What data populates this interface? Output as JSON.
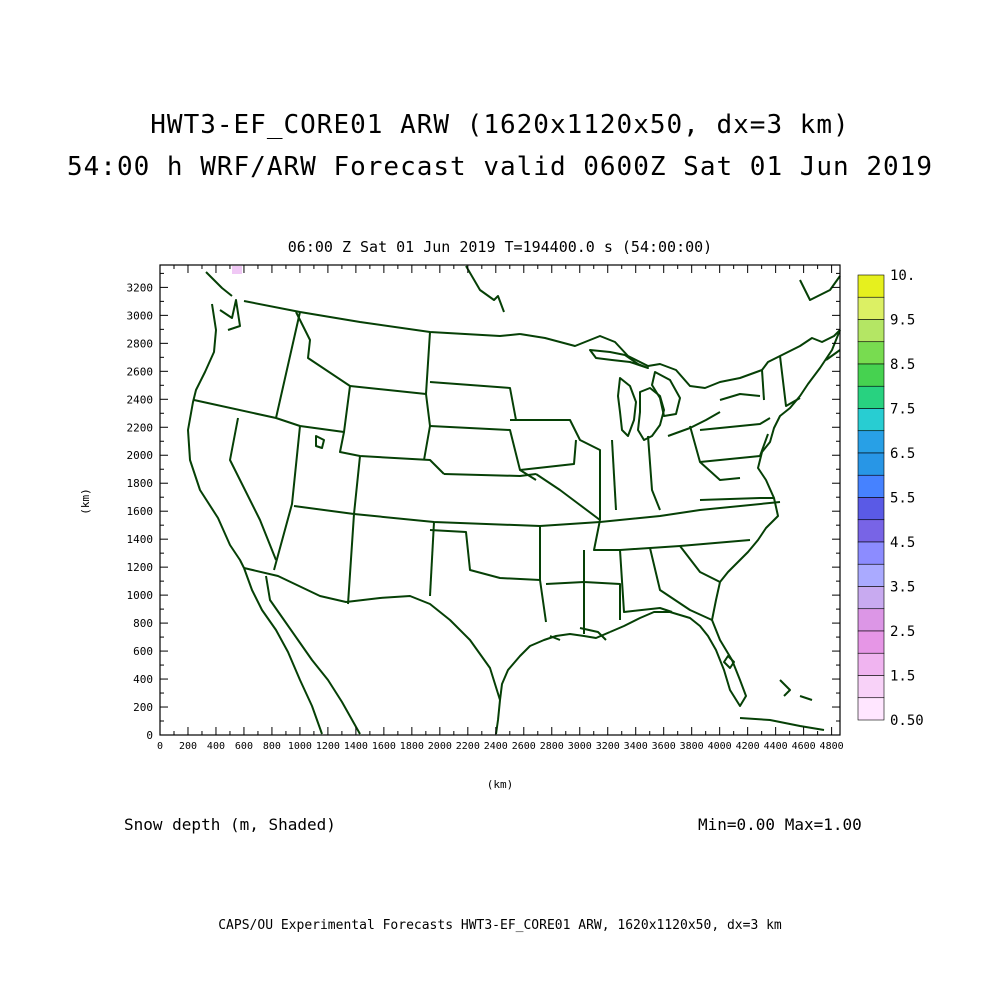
{
  "titles": {
    "line1": "HWT3-EF_CORE01 ARW (1620x1120x50, dx=3 km)",
    "line2": "54:00 h WRF/ARW Forecast valid 0600Z Sat 01 Jun 2019"
  },
  "subtitle": "06:00 Z Sat 01 Jun 2019    T=194400.0 s (54:00:00)",
  "axes": {
    "x_unit": "(km)",
    "y_unit": "(km)",
    "x_ticks": [
      "0",
      "200",
      "400",
      "600",
      "800",
      "1000",
      "1200",
      "1400",
      "1600",
      "1800",
      "2000",
      "2200",
      "2400",
      "2600",
      "2800",
      "3000",
      "3200",
      "3400",
      "3600",
      "3800",
      "4000",
      "4200",
      "4400",
      "4600",
      "4800"
    ],
    "y_ticks": [
      "0",
      "200",
      "400",
      "600",
      "800",
      "1000",
      "1200",
      "1400",
      "1600",
      "1800",
      "2000",
      "2200",
      "2400",
      "2600",
      "2800",
      "3000",
      "3200"
    ],
    "x_range": [
      0,
      4860
    ],
    "y_range": [
      0,
      3360
    ]
  },
  "variable_label": "Snow depth (m, Shaded)",
  "min_max": "Min=0.00 Max=1.00",
  "footer": "CAPS/OU Experimental Forecasts  HWT3-EF_CORE01 ARW, 1620x1120x50, dx=3 km",
  "colorbar": {
    "labels": [
      "10.",
      "9.5",
      "8.5",
      "7.5",
      "6.5",
      "5.5",
      "4.5",
      "3.5",
      "2.5",
      "1.5",
      "0.50"
    ],
    "colors_top_to_bottom": [
      "#e6f01e",
      "#dcf064",
      "#b4e664",
      "#78dc50",
      "#46d250",
      "#28d280",
      "#28cdd2",
      "#28a0e6",
      "#2896e6",
      "#4682ff",
      "#5a5ae6",
      "#7864e6",
      "#8c8cff",
      "#aaaaff",
      "#c8aaf0",
      "#dc96e6",
      "#e696e6",
      "#f0b4f0",
      "#f8d2f8",
      "#ffe6ff"
    ]
  },
  "map": {
    "boundary_color": "#064006",
    "snow_patch_color": "#f0c8f5"
  }
}
